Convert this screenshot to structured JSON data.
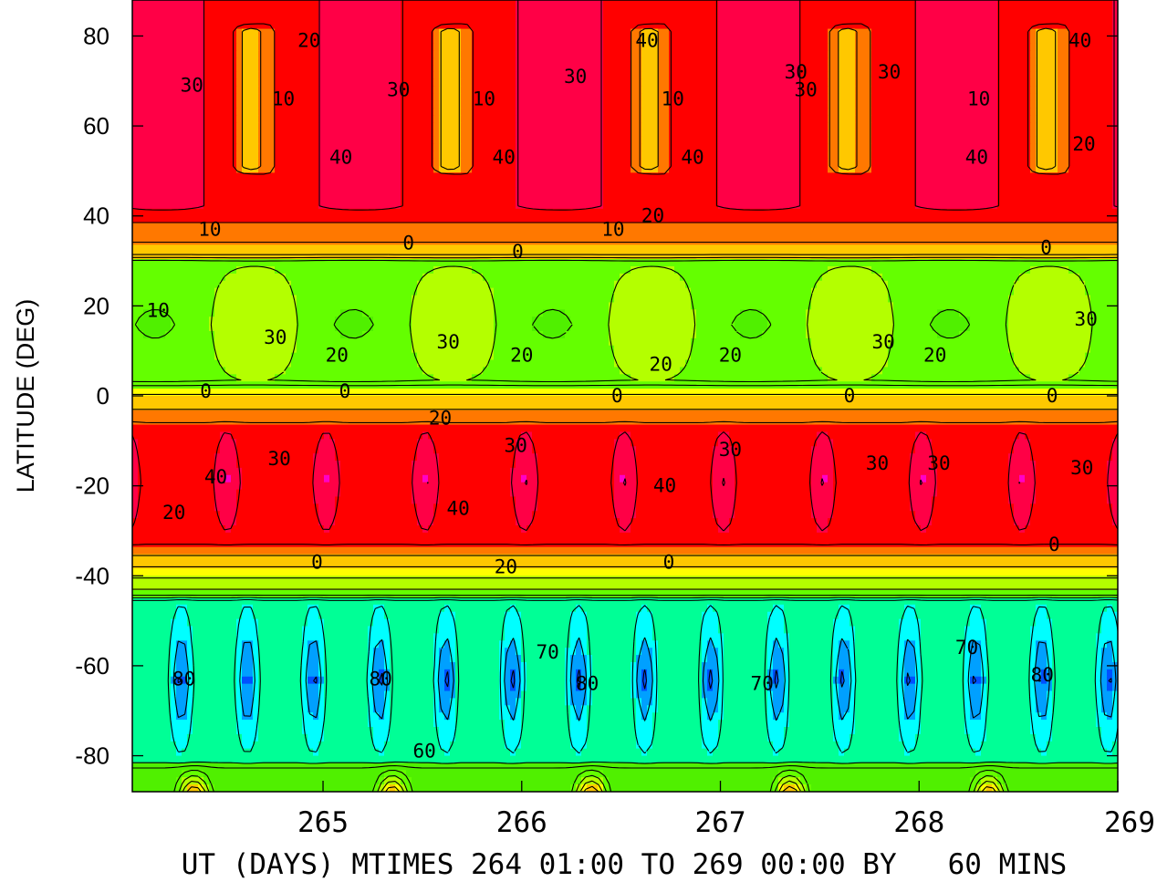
{
  "chart_data": {
    "type": "heatmap",
    "subtype": "filled-contour",
    "xlabel": "UT (DAYS) MTIMES 264 01:00 TO 269 00:00 BY   60 MINS",
    "ylabel": "LATITUDE (DEG)",
    "xlim": [
      264.04,
      269.0
    ],
    "ylim": [
      -88,
      88
    ],
    "x_ticks": [
      "265",
      "266",
      "267",
      "268",
      "269"
    ],
    "x_tick_values": [
      265,
      266,
      267,
      268,
      269
    ],
    "y_ticks": [
      "80",
      "60",
      "40",
      "20",
      "0",
      "-20",
      "-40",
      "-60",
      "-80"
    ],
    "y_tick_values": [
      80,
      60,
      40,
      20,
      0,
      -20,
      -40,
      -60,
      -80
    ],
    "contour_interval": 10,
    "negative_contours_dashed": true,
    "color_levels": [
      {
        "min": -90,
        "max": -80,
        "color": "#0050ff"
      },
      {
        "min": -80,
        "max": -70,
        "color": "#00a0ff"
      },
      {
        "min": -70,
        "max": -60,
        "color": "#00ffff"
      },
      {
        "min": -60,
        "max": -50,
        "color": "#00ff96"
      },
      {
        "min": -50,
        "max": -40,
        "color": "#00ff00"
      },
      {
        "min": -40,
        "max": -30,
        "color": "#50f000"
      },
      {
        "min": -30,
        "max": -20,
        "color": "#64ff00"
      },
      {
        "min": -20,
        "max": -10,
        "color": "#b4ff00"
      },
      {
        "min": -10,
        "max": 0,
        "color": "#ffff00"
      },
      {
        "min": 0,
        "max": 10,
        "color": "#ffc800"
      },
      {
        "min": 10,
        "max": 20,
        "color": "#ff7800"
      },
      {
        "min": 20,
        "max": 30,
        "color": "#ff0000"
      },
      {
        "min": 30,
        "max": 40,
        "color": "#ff0046"
      },
      {
        "min": 40,
        "max": 50,
        "color": "#ff00c8"
      }
    ],
    "contour_labels": [
      {
        "text": "20",
        "x": 264.93,
        "y": 79
      },
      {
        "text": "30",
        "x": 264.34,
        "y": 69
      },
      {
        "text": "10",
        "x": 264.8,
        "y": 66
      },
      {
        "text": "40",
        "x": 265.09,
        "y": 53
      },
      {
        "text": "30",
        "x": 265.38,
        "y": 68
      },
      {
        "text": "10",
        "x": 265.81,
        "y": 66
      },
      {
        "text": "40",
        "x": 265.91,
        "y": 53
      },
      {
        "text": "40",
        "x": 266.63,
        "y": 79
      },
      {
        "text": "30",
        "x": 266.27,
        "y": 71
      },
      {
        "text": "10",
        "x": 266.76,
        "y": 66
      },
      {
        "text": "40",
        "x": 266.86,
        "y": 53
      },
      {
        "text": "30",
        "x": 267.38,
        "y": 72
      },
      {
        "text": "30",
        "x": 267.85,
        "y": 72
      },
      {
        "text": "10",
        "x": 268.3,
        "y": 66
      },
      {
        "text": "40",
        "x": 268.29,
        "y": 53
      },
      {
        "text": "30",
        "x": 267.43,
        "y": 68
      },
      {
        "text": "40",
        "x": 268.81,
        "y": 79
      },
      {
        "text": "20",
        "x": 268.83,
        "y": 56
      },
      {
        "text": "10",
        "x": 264.43,
        "y": 37
      },
      {
        "text": "0",
        "x": 265.43,
        "y": 34
      },
      {
        "text": "0",
        "x": 265.98,
        "y": 32
      },
      {
        "text": "10",
        "x": 266.46,
        "y": 37
      },
      {
        "text": "20",
        "x": 266.66,
        "y": 40
      },
      {
        "text": "0",
        "x": 268.64,
        "y": 33
      },
      {
        "text": "10",
        "x": 264.17,
        "y": 19
      },
      {
        "text": "30",
        "x": 264.76,
        "y": 13
      },
      {
        "text": "20",
        "x": 265.07,
        "y": 9
      },
      {
        "text": "30",
        "x": 265.63,
        "y": 12
      },
      {
        "text": "20",
        "x": 266.0,
        "y": 9
      },
      {
        "text": "20",
        "x": 266.7,
        "y": 7
      },
      {
        "text": "20",
        "x": 267.05,
        "y": 9
      },
      {
        "text": "30",
        "x": 267.82,
        "y": 12
      },
      {
        "text": "20",
        "x": 268.08,
        "y": 9
      },
      {
        "text": "30",
        "x": 268.84,
        "y": 17
      },
      {
        "text": "0",
        "x": 264.41,
        "y": 1
      },
      {
        "text": "0",
        "x": 265.11,
        "y": 1
      },
      {
        "text": "0",
        "x": 266.48,
        "y": 0
      },
      {
        "text": "0",
        "x": 267.65,
        "y": 0
      },
      {
        "text": "0",
        "x": 268.67,
        "y": 0
      },
      {
        "text": "20",
        "x": 265.59,
        "y": -5
      },
      {
        "text": "40",
        "x": 264.46,
        "y": -18
      },
      {
        "text": "30",
        "x": 264.78,
        "y": -14
      },
      {
        "text": "30",
        "x": 265.97,
        "y": -11
      },
      {
        "text": "40",
        "x": 265.68,
        "y": -25
      },
      {
        "text": "40",
        "x": 266.72,
        "y": -20
      },
      {
        "text": "30",
        "x": 267.05,
        "y": -12
      },
      {
        "text": "30",
        "x": 267.79,
        "y": -15
      },
      {
        "text": "30",
        "x": 268.1,
        "y": -15
      },
      {
        "text": "30",
        "x": 268.82,
        "y": -16
      },
      {
        "text": "20",
        "x": 264.25,
        "y": -26
      },
      {
        "text": "0",
        "x": 264.97,
        "y": -37
      },
      {
        "text": "20",
        "x": 265.92,
        "y": -38
      },
      {
        "text": "0",
        "x": 266.74,
        "y": -37
      },
      {
        "text": "0",
        "x": 268.68,
        "y": -33
      },
      {
        "text": "80",
        "x": 264.3,
        "y": -63
      },
      {
        "text": "80",
        "x": 265.29,
        "y": -63
      },
      {
        "text": "70",
        "x": 266.13,
        "y": -57
      },
      {
        "text": "80",
        "x": 266.33,
        "y": -64
      },
      {
        "text": "70",
        "x": 267.21,
        "y": -64
      },
      {
        "text": "70",
        "x": 268.24,
        "y": -56
      },
      {
        "text": "80",
        "x": 268.62,
        "y": -62
      },
      {
        "text": "60",
        "x": 265.51,
        "y": -79
      }
    ]
  }
}
